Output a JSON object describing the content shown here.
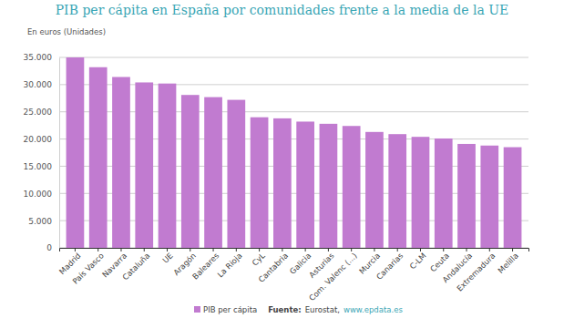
{
  "chart_data": {
    "type": "bar",
    "title": "PIB per cápita en España por comunidades frente a la media de la UE",
    "y_label": "En euros (Unidades)",
    "categories": [
      "Madrid",
      "País Vasco",
      "Navarra",
      "Cataluña",
      "UE",
      "Aragón",
      "Baleares",
      "La Rioja",
      "CyL",
      "Cantabria",
      "Galicia",
      "Asturias",
      "Com. Valenc (...)",
      "Murcia",
      "Canarias",
      "C-LM",
      "Ceuta",
      "Andalucía",
      "Extremadura",
      "Melilla"
    ],
    "series": [
      {
        "name": "PIB per cápita",
        "color": "#c17bd0",
        "values": [
          35000,
          33200,
          31400,
          30400,
          30200,
          28100,
          27700,
          27200,
          24000,
          23800,
          23200,
          22800,
          22400,
          21300,
          20900,
          20400,
          20100,
          19100,
          18800,
          18500
        ]
      }
    ],
    "ylim": [
      0,
      35000
    ],
    "yticks": [
      0,
      {
        "value": 5000,
        "label": "5.000"
      },
      {
        "value": 10000,
        "label": "10.000"
      },
      {
        "value": 15000,
        "label": "15.000"
      },
      {
        "value": 20000,
        "label": "20.000"
      },
      {
        "value": 25000,
        "label": "25.000"
      },
      {
        "value": 30000,
        "label": "30.000"
      },
      {
        "value": 35000,
        "label": "35.000"
      }
    ],
    "grid": true,
    "legend": "bottom",
    "source_label": "Fuente:",
    "source": "Eurostat,",
    "source_link": "www.epdata.es"
  }
}
